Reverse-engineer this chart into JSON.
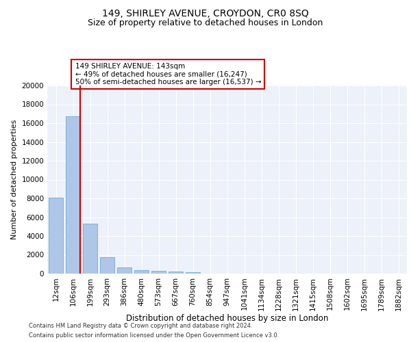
{
  "title1": "149, SHIRLEY AVENUE, CROYDON, CR0 8SQ",
  "title2": "Size of property relative to detached houses in London",
  "xlabel": "Distribution of detached houses by size in London",
  "ylabel": "Number of detached properties",
  "bar_labels": [
    "12sqm",
    "106sqm",
    "199sqm",
    "293sqm",
    "386sqm",
    "480sqm",
    "573sqm",
    "667sqm",
    "760sqm",
    "854sqm",
    "947sqm",
    "1041sqm",
    "1134sqm",
    "1228sqm",
    "1321sqm",
    "1415sqm",
    "1508sqm",
    "1602sqm",
    "1695sqm",
    "1789sqm",
    "1882sqm"
  ],
  "bar_values": [
    8100,
    16700,
    5300,
    1750,
    650,
    350,
    280,
    200,
    170,
    0,
    0,
    0,
    0,
    0,
    0,
    0,
    0,
    0,
    0,
    0,
    0
  ],
  "bar_color": "#aec6e8",
  "bar_edge_color": "#6aaed6",
  "vline_x": 1.42,
  "vline_color": "#cc0000",
  "annotation_text": "149 SHIRLEY AVENUE: 143sqm\n← 49% of detached houses are smaller (16,247)\n50% of semi-detached houses are larger (16,537) →",
  "annotation_box_color": "#ffffff",
  "annotation_box_edge_color": "#cc0000",
  "ylim": [
    0,
    20000
  ],
  "yticks": [
    0,
    2000,
    4000,
    6000,
    8000,
    10000,
    12000,
    14000,
    16000,
    18000,
    20000
  ],
  "background_color": "#edf1f9",
  "footer1": "Contains HM Land Registry data © Crown copyright and database right 2024.",
  "footer2": "Contains public sector information licensed under the Open Government Licence v3.0.",
  "title1_fontsize": 10,
  "title2_fontsize": 9,
  "xlabel_fontsize": 8.5,
  "ylabel_fontsize": 8,
  "tick_fontsize": 7.5,
  "annotation_fontsize": 7.5,
  "footer_fontsize": 6.0
}
